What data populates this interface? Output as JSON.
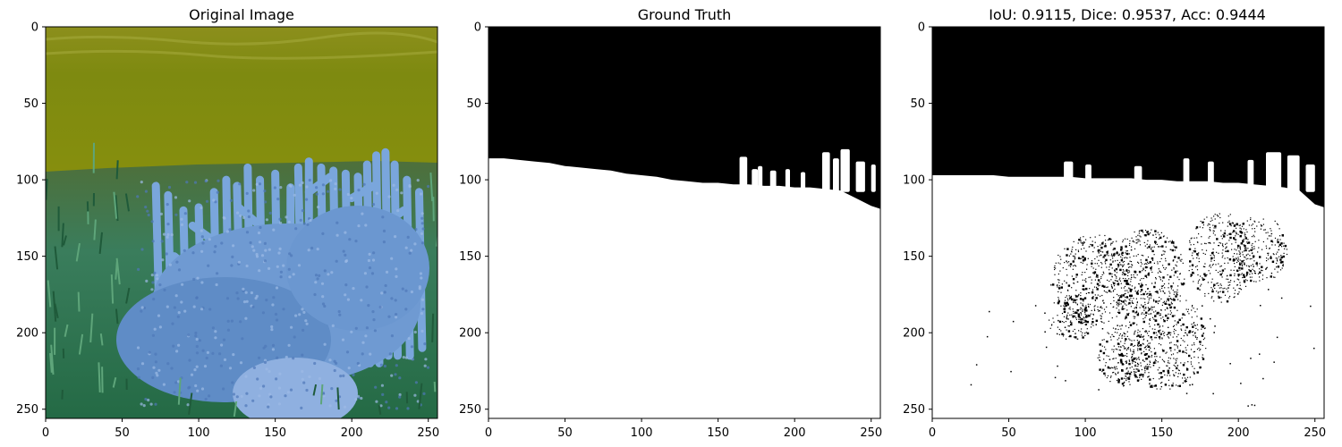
{
  "chart_data": [
    {
      "type": "image",
      "title": "Original Image",
      "image_content": "underwater scene: murky olive-yellow water above, blue branching coral and green seagrass below",
      "xlim": [
        0,
        256
      ],
      "ylim": [
        256,
        0
      ],
      "xticks": [
        0,
        50,
        100,
        150,
        200,
        250
      ],
      "yticks": [
        0,
        50,
        100,
        150,
        200,
        250
      ],
      "colors": {
        "water": "#8a8a10",
        "coral": "#6f9fd8",
        "grass": "#2f7a55"
      }
    },
    {
      "type": "image",
      "title": "Ground Truth",
      "image_content": "binary mask: black region above the coral boundary, white region below",
      "xlim": [
        0,
        256
      ],
      "ylim": [
        256,
        0
      ],
      "xticks": [
        0,
        50,
        100,
        150,
        200,
        250
      ],
      "yticks": [
        0,
        50,
        100,
        150,
        200,
        250
      ],
      "boundary_x": [
        0,
        10,
        20,
        30,
        40,
        50,
        60,
        70,
        80,
        90,
        100,
        110,
        120,
        130,
        140,
        150,
        160,
        170,
        180,
        190,
        200,
        210,
        220,
        230,
        240,
        250,
        256
      ],
      "boundary_y": [
        86,
        86,
        87,
        88,
        89,
        91,
        92,
        93,
        94,
        96,
        97,
        98,
        100,
        101,
        102,
        102,
        103,
        103,
        104,
        104,
        105,
        105,
        106,
        107,
        112,
        117,
        119
      ],
      "spikes": [
        {
          "x": [
            164,
            169
          ],
          "top": 85
        },
        {
          "x": [
            172,
            176
          ],
          "top": 93
        },
        {
          "x": [
            176,
            179
          ],
          "top": 91
        },
        {
          "x": [
            184,
            188
          ],
          "top": 94
        },
        {
          "x": [
            194,
            197
          ],
          "top": 93
        },
        {
          "x": [
            204,
            207
          ],
          "top": 95
        },
        {
          "x": [
            218,
            223
          ],
          "top": 82
        },
        {
          "x": [
            225,
            229
          ],
          "top": 86
        },
        {
          "x": [
            230,
            236
          ],
          "top": 80
        },
        {
          "x": [
            240,
            246
          ],
          "top": 88
        },
        {
          "x": [
            250,
            253
          ],
          "top": 90
        }
      ],
      "colors": {
        "background": "#000000",
        "foreground": "#ffffff"
      }
    },
    {
      "type": "image",
      "title": "IoU: 0.9115, Dice: 0.9537, Acc: 0.9444",
      "image_content": "predicted binary mask with scattered misclassified speckles inside the coral region",
      "metrics": {
        "IoU": 0.9115,
        "Dice": 0.9537,
        "Acc": 0.9444
      },
      "xlim": [
        0,
        256
      ],
      "ylim": [
        256,
        0
      ],
      "xticks": [
        0,
        50,
        100,
        150,
        200,
        250
      ],
      "yticks": [
        0,
        50,
        100,
        150,
        200,
        250
      ],
      "boundary_x": [
        0,
        10,
        20,
        30,
        40,
        50,
        60,
        70,
        80,
        90,
        100,
        110,
        120,
        130,
        140,
        150,
        160,
        170,
        180,
        190,
        200,
        210,
        220,
        230,
        240,
        250,
        256
      ],
      "boundary_y": [
        97,
        97,
        97,
        97,
        97,
        98,
        98,
        98,
        98,
        98,
        99,
        99,
        99,
        99,
        100,
        100,
        101,
        101,
        101,
        102,
        102,
        103,
        104,
        105,
        107,
        116,
        118
      ],
      "spikes": [
        {
          "x": [
            86,
            92
          ],
          "top": 88
        },
        {
          "x": [
            100,
            104
          ],
          "top": 90
        },
        {
          "x": [
            132,
            137
          ],
          "top": 91
        },
        {
          "x": [
            164,
            168
          ],
          "top": 86
        },
        {
          "x": [
            180,
            184
          ],
          "top": 88
        },
        {
          "x": [
            206,
            210
          ],
          "top": 87
        },
        {
          "x": [
            218,
            228
          ],
          "top": 82
        },
        {
          "x": [
            232,
            240
          ],
          "top": 84
        },
        {
          "x": [
            244,
            250
          ],
          "top": 90
        }
      ],
      "error_clusters": [
        {
          "cx": 105,
          "cy": 165,
          "rx": 28,
          "ry": 30
        },
        {
          "cx": 140,
          "cy": 160,
          "rx": 25,
          "ry": 28
        },
        {
          "cx": 150,
          "cy": 205,
          "rx": 30,
          "ry": 32
        },
        {
          "cx": 188,
          "cy": 150,
          "rx": 22,
          "ry": 30
        },
        {
          "cx": 214,
          "cy": 145,
          "rx": 18,
          "ry": 22
        },
        {
          "cx": 90,
          "cy": 190,
          "rx": 15,
          "ry": 15
        },
        {
          "cx": 125,
          "cy": 215,
          "rx": 18,
          "ry": 20
        }
      ],
      "colors": {
        "background": "#000000",
        "foreground": "#ffffff"
      }
    }
  ]
}
